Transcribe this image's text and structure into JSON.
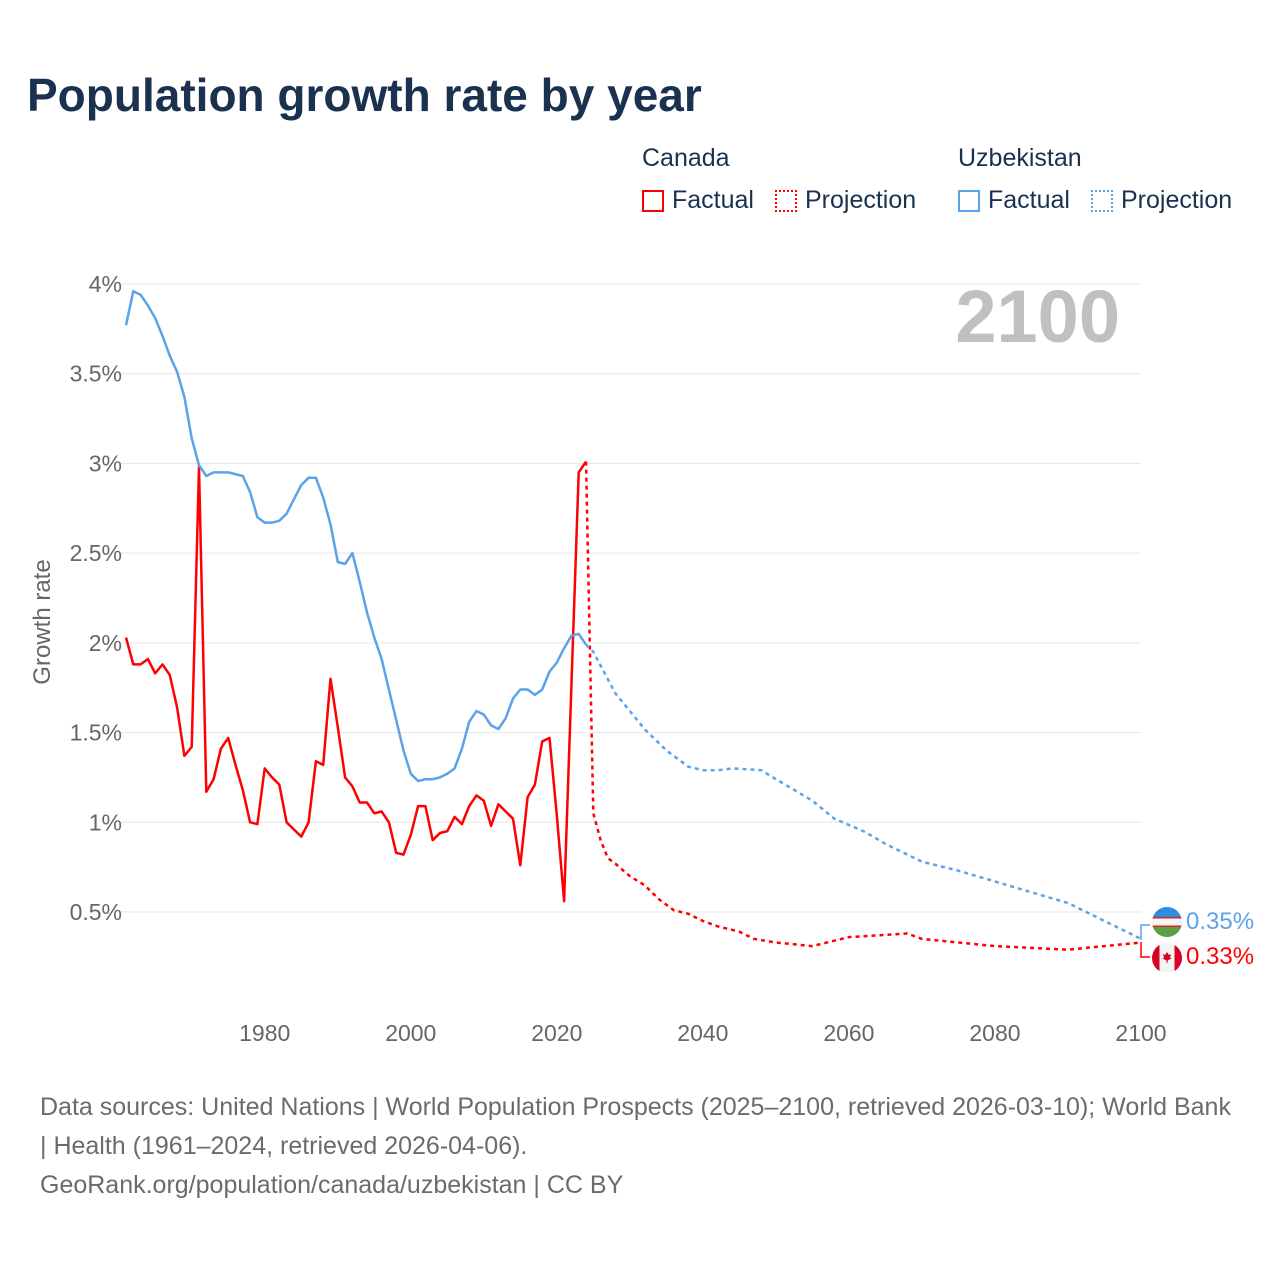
{
  "title": "Population growth rate by year",
  "legend": {
    "groups": [
      {
        "name": "Canada",
        "color": "#ff0000",
        "factual": "Factual",
        "projection": "Projection"
      },
      {
        "name": "Uzbekistan",
        "color": "#5ba3e8",
        "factual": "Factual",
        "projection": "Projection"
      }
    ]
  },
  "year_overlay": "2100",
  "end_labels": {
    "uzbekistan": "0.35%",
    "canada": "0.33%"
  },
  "footer": {
    "sources": "Data sources: United Nations | World Population Prospects (2025–2100, retrieved 2026-03-10); World Bank | Health (1961–2024, retrieved 2026-04-06).",
    "credit": "GeoRank.org/population/canada/uzbekistan | CC BY"
  },
  "chart_data": {
    "type": "line",
    "title": "Population growth rate by year",
    "xlabel": "",
    "ylabel": "Growth rate",
    "xlim": [
      1961,
      2100
    ],
    "ylim": [
      0,
      4
    ],
    "x_ticks": [
      1980,
      2000,
      2020,
      2040,
      2060,
      2080,
      2100
    ],
    "y_ticks": [
      0.5,
      1,
      1.5,
      2,
      2.5,
      3,
      3.5,
      4
    ],
    "y_tick_labels": [
      "0.5%",
      "1%",
      "1.5%",
      "2%",
      "2.5%",
      "3%",
      "3.5%",
      "4%"
    ],
    "grid": true,
    "legend_position": "top-right",
    "series": [
      {
        "name": "Canada Factual",
        "color": "#ff0000",
        "style": "solid",
        "x": [
          1961,
          1962,
          1963,
          1964,
          1965,
          1966,
          1967,
          1968,
          1969,
          1970,
          1971,
          1972,
          1973,
          1974,
          1975,
          1976,
          1977,
          1978,
          1979,
          1980,
          1981,
          1982,
          1983,
          1984,
          1985,
          1986,
          1987,
          1988,
          1989,
          1990,
          1991,
          1992,
          1993,
          1994,
          1995,
          1996,
          1997,
          1998,
          1999,
          2000,
          2001,
          2002,
          2003,
          2004,
          2005,
          2006,
          2007,
          2008,
          2009,
          2010,
          2011,
          2012,
          2013,
          2014,
          2015,
          2016,
          2017,
          2018,
          2019,
          2020,
          2021,
          2022,
          2023,
          2024
        ],
        "values": [
          2.03,
          1.88,
          1.88,
          1.91,
          1.83,
          1.88,
          1.82,
          1.64,
          1.37,
          1.42,
          2.98,
          1.17,
          1.24,
          1.41,
          1.47,
          1.32,
          1.18,
          1.0,
          0.99,
          1.3,
          1.25,
          1.21,
          1.0,
          0.96,
          0.92,
          1.0,
          1.34,
          1.32,
          1.8,
          1.53,
          1.25,
          1.2,
          1.11,
          1.11,
          1.05,
          1.06,
          1.0,
          0.83,
          0.82,
          0.93,
          1.09,
          1.09,
          0.9,
          0.94,
          0.95,
          1.03,
          0.99,
          1.09,
          1.15,
          1.12,
          0.98,
          1.1,
          1.06,
          1.02,
          0.76,
          1.14,
          1.21,
          1.45,
          1.47,
          1.04,
          0.56,
          1.76,
          2.95,
          3.01
        ]
      },
      {
        "name": "Canada Projection",
        "color": "#ff0000",
        "style": "dotted",
        "x": [
          2024,
          2025,
          2026,
          2027,
          2028,
          2030,
          2032,
          2034,
          2036,
          2038,
          2040,
          2042,
          2045,
          2047,
          2050,
          2055,
          2060,
          2064,
          2068,
          2070,
          2075,
          2080,
          2085,
          2090,
          2095,
          2100
        ],
        "values": [
          3.01,
          1.05,
          0.9,
          0.8,
          0.77,
          0.7,
          0.65,
          0.57,
          0.51,
          0.49,
          0.45,
          0.42,
          0.39,
          0.35,
          0.33,
          0.31,
          0.36,
          0.37,
          0.38,
          0.35,
          0.33,
          0.31,
          0.3,
          0.29,
          0.31,
          0.33
        ]
      },
      {
        "name": "Uzbekistan Factual",
        "color": "#5ba3e8",
        "style": "solid",
        "x": [
          1961,
          1962,
          1963,
          1964,
          1965,
          1966,
          1967,
          1968,
          1969,
          1970,
          1971,
          1972,
          1973,
          1974,
          1975,
          1976,
          1977,
          1978,
          1979,
          1980,
          1981,
          1982,
          1983,
          1984,
          1985,
          1986,
          1987,
          1988,
          1989,
          1990,
          1991,
          1992,
          1993,
          1994,
          1995,
          1996,
          1997,
          1998,
          1999,
          2000,
          2001,
          2002,
          2003,
          2004,
          2005,
          2006,
          2007,
          2008,
          2009,
          2010,
          2011,
          2012,
          2013,
          2014,
          2015,
          2016,
          2017,
          2018,
          2019,
          2020,
          2021,
          2022,
          2023,
          2024
        ],
        "values": [
          3.77,
          3.96,
          3.94,
          3.88,
          3.81,
          3.71,
          3.6,
          3.51,
          3.37,
          3.14,
          2.99,
          2.93,
          2.95,
          2.95,
          2.95,
          2.94,
          2.93,
          2.84,
          2.7,
          2.67,
          2.67,
          2.68,
          2.72,
          2.8,
          2.88,
          2.92,
          2.92,
          2.81,
          2.66,
          2.45,
          2.44,
          2.5,
          2.34,
          2.17,
          2.03,
          1.91,
          1.74,
          1.57,
          1.4,
          1.27,
          1.23,
          1.24,
          1.24,
          1.25,
          1.27,
          1.3,
          1.41,
          1.56,
          1.62,
          1.6,
          1.54,
          1.52,
          1.58,
          1.69,
          1.74,
          1.74,
          1.71,
          1.74,
          1.84,
          1.89,
          1.97,
          2.04,
          2.05,
          1.99
        ]
      },
      {
        "name": "Uzbekistan Projection",
        "color": "#5ba3e8",
        "style": "dotted",
        "x": [
          2024,
          2025,
          2028,
          2030,
          2032,
          2035,
          2038,
          2040,
          2042,
          2044,
          2048,
          2050,
          2055,
          2058,
          2062,
          2065,
          2068,
          2070,
          2075,
          2080,
          2085,
          2090,
          2095,
          2100
        ],
        "values": [
          1.99,
          1.95,
          1.72,
          1.62,
          1.52,
          1.4,
          1.31,
          1.29,
          1.29,
          1.3,
          1.29,
          1.24,
          1.12,
          1.02,
          0.95,
          0.88,
          0.82,
          0.78,
          0.73,
          0.67,
          0.61,
          0.55,
          0.45,
          0.35
        ]
      }
    ]
  }
}
